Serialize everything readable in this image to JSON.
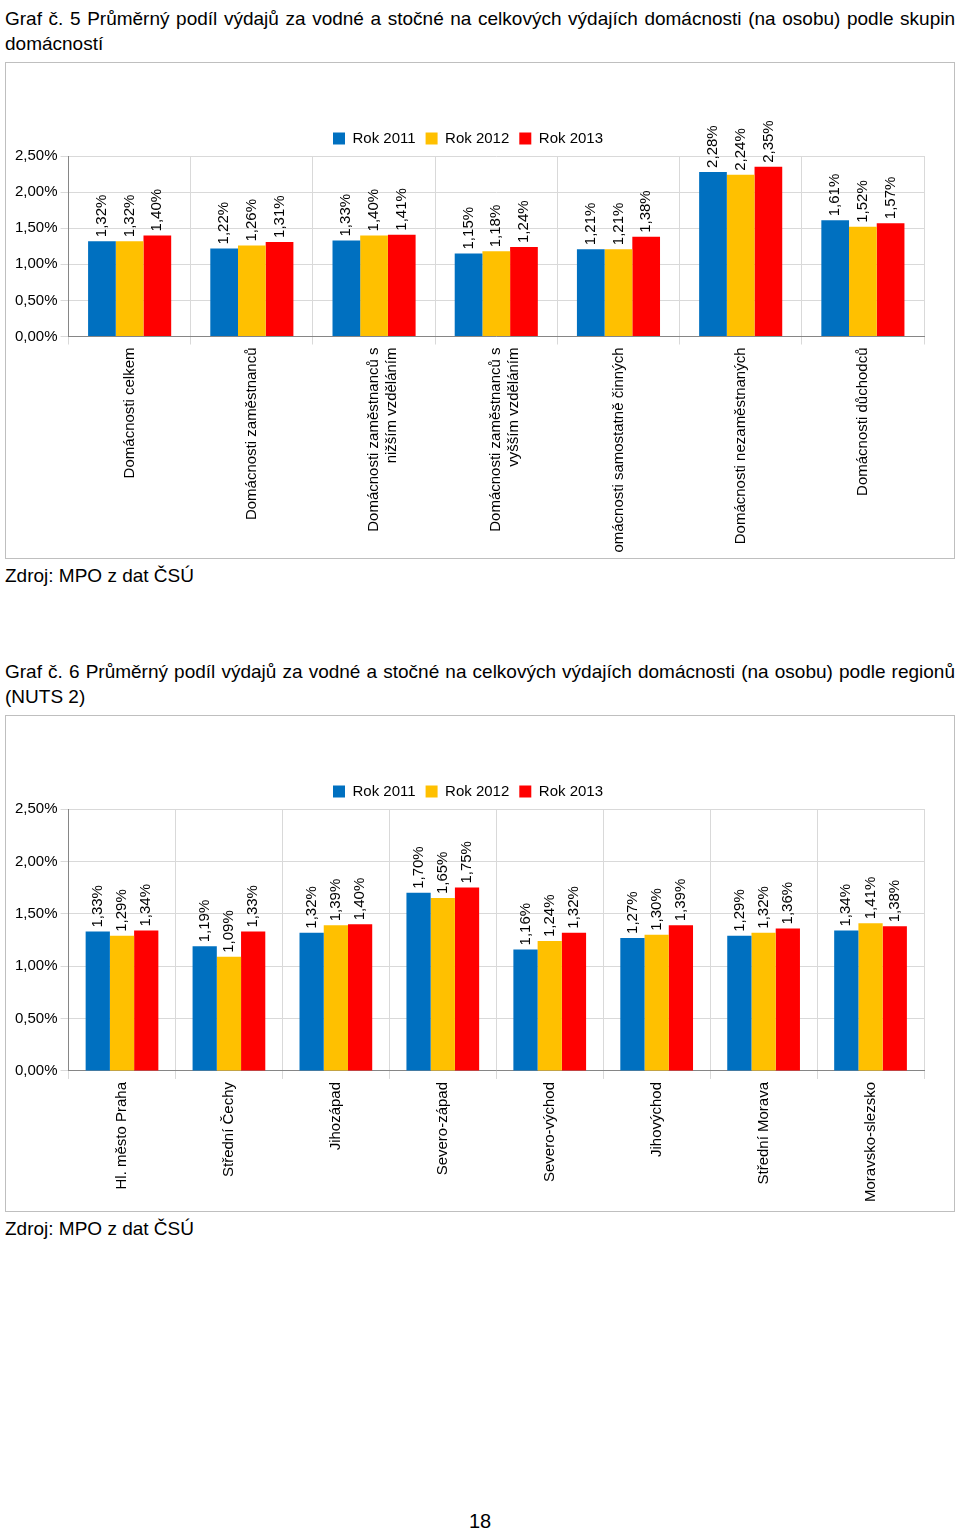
{
  "chart_data": [
    {
      "type": "bar",
      "title": "Graf č. 5 Průměrný podíl výdajů za vodné a stočné na celkových výdajích domácnosti (na osobu) podle skupin domácností",
      "source": "Zdroj: MPO z dat ČSÚ",
      "categories": [
        "Domácnosti celkem",
        "Domácnosti zaměstnanců",
        "Domácnosti zaměstnanců s nižším vzděláním",
        "Domácnosti zaměstnanců s vyšším vzděláním",
        "Domácnosti samostatně činných",
        "Domácnosti nezaměstnaných",
        "Domácnosti důchodců"
      ],
      "series": [
        {
          "name": "Rok 2011",
          "color": "#0070c0",
          "values": [
            1.32,
            1.22,
            1.33,
            1.15,
            1.21,
            2.28,
            1.61
          ],
          "value_labels": [
            "1,32%",
            "1,22%",
            "1,33%",
            "1,15%",
            "1,21%",
            "2,28%",
            "1,61%"
          ]
        },
        {
          "name": "Rok 2012",
          "color": "#ffc000",
          "values": [
            1.32,
            1.26,
            1.4,
            1.18,
            1.21,
            2.24,
            1.52
          ],
          "value_labels": [
            "1,32%",
            "1,26%",
            "1,40%",
            "1,18%",
            "1,21%",
            "2,24%",
            "1,52%"
          ]
        },
        {
          "name": "Rok 2013",
          "color": "#ff0000",
          "values": [
            1.4,
            1.31,
            1.41,
            1.24,
            1.38,
            2.35,
            1.57
          ],
          "value_labels": [
            "1,40%",
            "1,31%",
            "1,41%",
            "1,24%",
            "1,38%",
            "2,35%",
            "1,57%"
          ]
        }
      ],
      "ylim": [
        0,
        2.5
      ],
      "yticks": [
        {
          "value": 0,
          "label": "0,00%"
        },
        {
          "value": 0.5,
          "label": "0,50%"
        },
        {
          "value": 1,
          "label": "1,00%"
        },
        {
          "value": 1.5,
          "label": "1,50%"
        },
        {
          "value": 2,
          "label": "2,00%"
        },
        {
          "value": 2.5,
          "label": "2,50%"
        }
      ],
      "grid": true,
      "legend": "top",
      "data_labels": true
    },
    {
      "type": "bar",
      "title": "Graf č. 6 Průměrný podíl výdajů za vodné a stočné na celkových výdajích domácnosti (na osobu) podle regionů (NUTS 2)",
      "source": "Zdroj: MPO z dat ČSÚ",
      "categories": [
        "Hl. město Praha",
        "Střední Čechy",
        "Jihozápad",
        "Severo-západ",
        "Severo-východ",
        "Jihovýchod",
        "Střední Morava",
        "Moravsko-slezsko"
      ],
      "series": [
        {
          "name": "Rok 2011",
          "color": "#0070c0",
          "values": [
            1.33,
            1.19,
            1.32,
            1.7,
            1.16,
            1.27,
            1.29,
            1.34
          ],
          "value_labels": [
            "1,33%",
            "1,19%",
            "1,32%",
            "1,70%",
            "1,16%",
            "1,27%",
            "1,29%",
            "1,34%"
          ]
        },
        {
          "name": "Rok 2012",
          "color": "#ffc000",
          "values": [
            1.29,
            1.09,
            1.39,
            1.65,
            1.24,
            1.3,
            1.32,
            1.41
          ],
          "value_labels": [
            "1,29%",
            "1,09%",
            "1,39%",
            "1,65%",
            "1,24%",
            "1,30%",
            "1,32%",
            "1,41%"
          ]
        },
        {
          "name": "Rok 2013",
          "color": "#ff0000",
          "values": [
            1.34,
            1.33,
            1.4,
            1.75,
            1.32,
            1.39,
            1.36,
            1.38
          ],
          "value_labels": [
            "1,34%",
            "1,33%",
            "1,40%",
            "1,75%",
            "1,32%",
            "1,39%",
            "1,36%",
            "1,38%"
          ]
        }
      ],
      "ylim": [
        0,
        2.5
      ],
      "yticks": [
        {
          "value": 0,
          "label": "0,00%"
        },
        {
          "value": 0.5,
          "label": "0,50%"
        },
        {
          "value": 1,
          "label": "1,00%"
        },
        {
          "value": 1.5,
          "label": "1,50%"
        },
        {
          "value": 2,
          "label": "2,00%"
        },
        {
          "value": 2.5,
          "label": "2,50%"
        }
      ],
      "grid": true,
      "legend": "top",
      "data_labels": true
    }
  ],
  "page_number": 18
}
